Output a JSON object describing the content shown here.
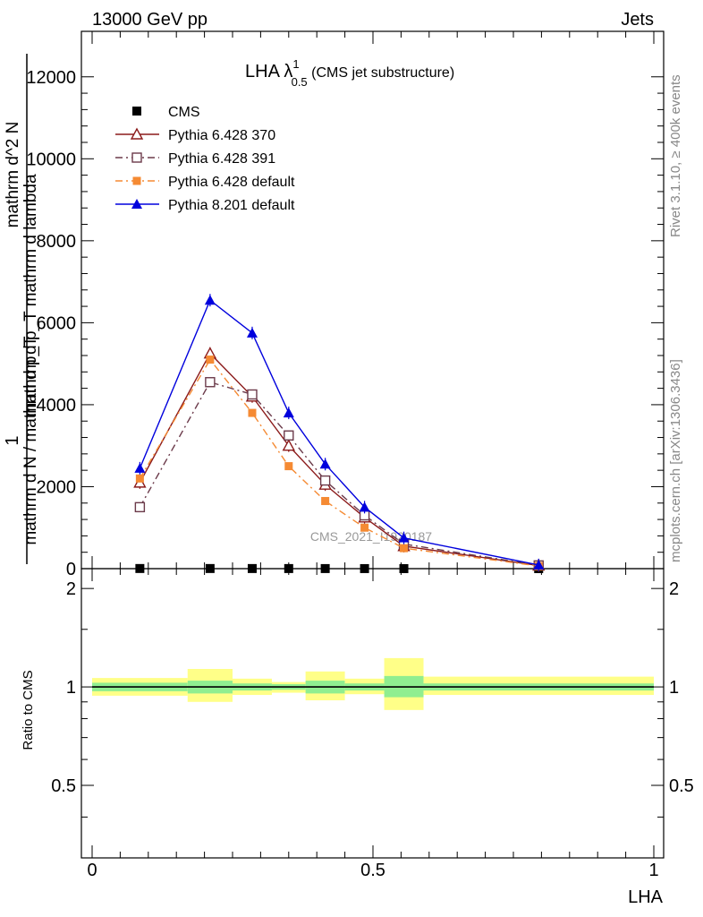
{
  "header": {
    "left": "13000 GeV pp",
    "right": "Jets"
  },
  "side_labels": {
    "rivet": "Rivet 3.1.10, ≥ 400k events",
    "mcplots": "mcplots.cern.ch [arXiv:1306.3436]"
  },
  "watermark": "CMS_2021_I1920187",
  "colors": {
    "cms": "#000000",
    "py370": "#8b1a1a",
    "py391": "#6b3a4a",
    "py_default": "#f58a33",
    "py8": "#0000dd",
    "band_inner": "#90ee90",
    "band_outer": "#ffff88"
  },
  "chart_data": [
    {
      "type": "line",
      "title": "LHA λ",
      "title_sup": "1",
      "title_sub": "0.5",
      "title_suffix": " (CMS jet substructure)",
      "ylabel_top": "1",
      "ylabel_bottom": "mathrm d N / mathrm d p_T",
      "ylabel_numerator": "mathrm d^2 N",
      "ylabel_denominator": "mathrm d p_T mathrm d lambda",
      "xlim": [
        0,
        1
      ],
      "ylim": [
        0,
        13000
      ],
      "yticks": [
        0,
        2000,
        4000,
        6000,
        8000,
        10000,
        12000
      ],
      "ytick_labels": [
        "0",
        "2000",
        "4000",
        "6000",
        "8000",
        "10000",
        "12000"
      ],
      "x": [
        0.085,
        0.21,
        0.285,
        0.35,
        0.415,
        0.485,
        0.555,
        0.795
      ],
      "series": [
        {
          "name": "CMS",
          "marker": "square-filled",
          "line": "none",
          "values": [
            3.5,
            3.2,
            2.8,
            2.4,
            2.0,
            1.5,
            0.9,
            0.15
          ]
        },
        {
          "name": "Pythia 6.428 370",
          "marker": "triangle-open",
          "line": "solid",
          "values": [
            2100,
            5250,
            4200,
            3000,
            2050,
            1250,
            550,
            75
          ]
        },
        {
          "name": "Pythia 6.428 391",
          "marker": "square-open",
          "line": "dashdot",
          "values": [
            1500,
            4550,
            4250,
            3250,
            2150,
            1300,
            600,
            80
          ]
        },
        {
          "name": "Pythia 6.428 default",
          "marker": "square-filled-small",
          "line": "dashdot",
          "values": [
            2200,
            5100,
            3800,
            2500,
            1650,
            1000,
            500,
            65
          ]
        },
        {
          "name": "Pythia 8.201 default",
          "marker": "triangle-filled",
          "line": "solid",
          "values": [
            2450,
            6550,
            5750,
            3800,
            2550,
            1500,
            750,
            90
          ]
        }
      ]
    },
    {
      "type": "area",
      "ylabel": "Ratio to CMS",
      "xlabel": "LHA",
      "xlim": [
        0,
        1
      ],
      "ylim": [
        0.3,
        2.3
      ],
      "yticks": [
        0.5,
        1,
        2
      ],
      "ytick_labels": [
        "0.5",
        "1",
        "2"
      ],
      "xticks": [
        0,
        0.5,
        1
      ],
      "xtick_labels": [
        "0",
        "0.5",
        "1"
      ],
      "bins": [
        {
          "x": [
            0.0,
            0.17
          ],
          "inner": [
            0.97,
            1.03
          ],
          "outer": [
            0.94,
            1.065
          ]
        },
        {
          "x": [
            0.17,
            0.25
          ],
          "inner": [
            0.955,
            1.045
          ],
          "outer": [
            0.9,
            1.135
          ]
        },
        {
          "x": [
            0.25,
            0.32
          ],
          "inner": [
            0.975,
            1.025
          ],
          "outer": [
            0.945,
            1.06
          ]
        },
        {
          "x": [
            0.32,
            0.38
          ],
          "inner": [
            0.98,
            1.02
          ],
          "outer": [
            0.96,
            1.035
          ]
        },
        {
          "x": [
            0.38,
            0.45
          ],
          "inner": [
            0.955,
            1.045
          ],
          "outer": [
            0.91,
            1.115
          ]
        },
        {
          "x": [
            0.45,
            0.52
          ],
          "inner": [
            0.975,
            1.025
          ],
          "outer": [
            0.95,
            1.06
          ]
        },
        {
          "x": [
            0.52,
            0.59
          ],
          "inner": [
            0.93,
            1.08
          ],
          "outer": [
            0.85,
            1.225
          ]
        },
        {
          "x": [
            0.59,
            1.0
          ],
          "inner": [
            0.975,
            1.025
          ],
          "outer": [
            0.945,
            1.075
          ]
        }
      ]
    }
  ]
}
